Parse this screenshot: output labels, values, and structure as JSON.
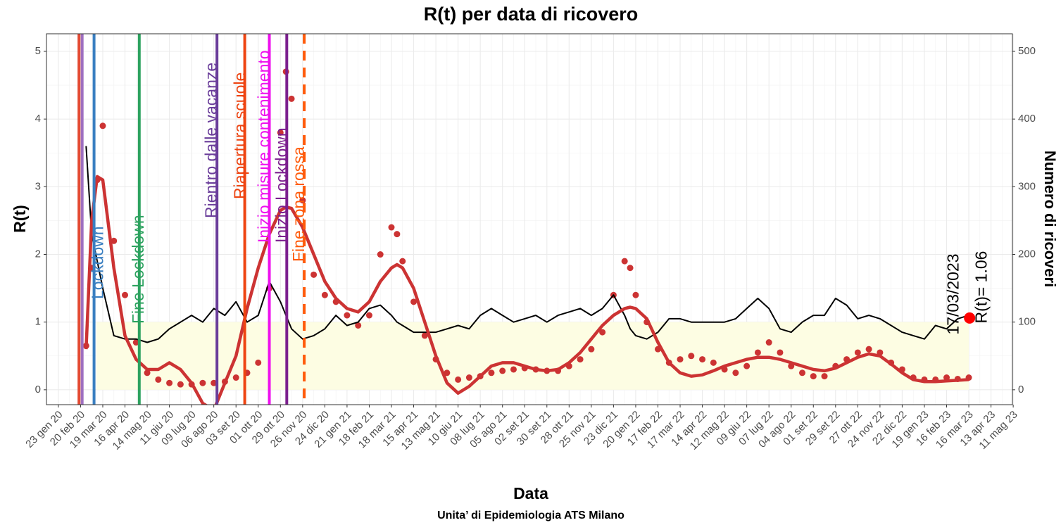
{
  "chart_data": {
    "type": "line",
    "title": "R(t) per data di ricovero",
    "xlabel": "Data",
    "ylabel": "R(t)",
    "y2label": "Numero di ricoveri",
    "caption": "Unita’ di Epidemiologia ATS Milano",
    "grid": true,
    "xlim": [
      "2020-01-08",
      "2023-05-10"
    ],
    "ylim": [
      -0.22,
      5.26
    ],
    "y2lim": [
      -22,
      526
    ],
    "yticks": [
      0,
      1,
      2,
      3,
      4,
      5
    ],
    "y2ticks": [
      0,
      100,
      200,
      300,
      400,
      500
    ],
    "xticks": [
      {
        "value": "2020-01-23",
        "label": "23 gen 20"
      },
      {
        "value": "2020-02-20",
        "label": "20 feb 20"
      },
      {
        "value": "2020-03-19",
        "label": "19 mar 20"
      },
      {
        "value": "2020-04-16",
        "label": "16 apr 20"
      },
      {
        "value": "2020-05-14",
        "label": "14 mag 20"
      },
      {
        "value": "2020-06-11",
        "label": "11 giu 20"
      },
      {
        "value": "2020-07-09",
        "label": "09 lug 20"
      },
      {
        "value": "2020-08-06",
        "label": "06 ago 20"
      },
      {
        "value": "2020-09-03",
        "label": "03 set 20"
      },
      {
        "value": "2020-10-01",
        "label": "01 ott 20"
      },
      {
        "value": "2020-10-29",
        "label": "29 ott 20"
      },
      {
        "value": "2020-11-26",
        "label": "26 nov 20"
      },
      {
        "value": "2020-12-24",
        "label": "24 dic 20"
      },
      {
        "value": "2021-01-21",
        "label": "21 gen 21"
      },
      {
        "value": "2021-02-18",
        "label": "18 feb 21"
      },
      {
        "value": "2021-03-18",
        "label": "18 mar 21"
      },
      {
        "value": "2021-04-15",
        "label": "15 apr 21"
      },
      {
        "value": "2021-05-13",
        "label": "13 mag 21"
      },
      {
        "value": "2021-06-10",
        "label": "10 giu 21"
      },
      {
        "value": "2021-07-08",
        "label": "08 lug 21"
      },
      {
        "value": "2021-08-05",
        "label": "05 ago 21"
      },
      {
        "value": "2021-09-02",
        "label": "02 set 21"
      },
      {
        "value": "2021-09-30",
        "label": "30 set 21"
      },
      {
        "value": "2021-10-28",
        "label": "28 ott 21"
      },
      {
        "value": "2021-11-25",
        "label": "25 nov 21"
      },
      {
        "value": "2021-12-23",
        "label": "23 dic 21"
      },
      {
        "value": "2022-01-20",
        "label": "20 gen 22"
      },
      {
        "value": "2022-02-17",
        "label": "17 feb 22"
      },
      {
        "value": "2022-03-17",
        "label": "17 mar 22"
      },
      {
        "value": "2022-04-14",
        "label": "14 apr 22"
      },
      {
        "value": "2022-05-12",
        "label": "12 mag 22"
      },
      {
        "value": "2022-06-09",
        "label": "09 giu 22"
      },
      {
        "value": "2022-07-07",
        "label": "07 lug 22"
      },
      {
        "value": "2022-08-04",
        "label": "04 ago 22"
      },
      {
        "value": "2022-09-01",
        "label": "01 set 22"
      },
      {
        "value": "2022-09-29",
        "label": "29 set 22"
      },
      {
        "value": "2022-10-27",
        "label": "27 ott 22"
      },
      {
        "value": "2022-11-24",
        "label": "24 nov 22"
      },
      {
        "value": "2022-12-22",
        "label": "22 dic 22"
      },
      {
        "value": "2023-01-19",
        "label": "19 gen 23"
      },
      {
        "value": "2023-02-16",
        "label": "16 feb 23"
      },
      {
        "value": "2023-03-16",
        "label": "16 mar 23"
      },
      {
        "value": "2023-04-13",
        "label": "13 apr 23"
      },
      {
        "value": "2023-05-11",
        "label": "11 mag 23"
      }
    ],
    "x": [
      "2020-02-27",
      "2020-03-05",
      "2020-03-12",
      "2020-03-19",
      "2020-04-02",
      "2020-04-16",
      "2020-04-30",
      "2020-05-14",
      "2020-05-28",
      "2020-06-11",
      "2020-06-25",
      "2020-07-09",
      "2020-07-23",
      "2020-08-06",
      "2020-08-20",
      "2020-09-03",
      "2020-09-17",
      "2020-10-01",
      "2020-10-15",
      "2020-10-29",
      "2020-11-05",
      "2020-11-12",
      "2020-11-26",
      "2020-12-10",
      "2020-12-24",
      "2021-01-07",
      "2021-01-21",
      "2021-02-04",
      "2021-02-18",
      "2021-03-04",
      "2021-03-18",
      "2021-03-25",
      "2021-04-01",
      "2021-04-15",
      "2021-04-29",
      "2021-05-13",
      "2021-05-27",
      "2021-06-10",
      "2021-06-24",
      "2021-07-08",
      "2021-07-22",
      "2021-08-05",
      "2021-08-19",
      "2021-09-02",
      "2021-09-16",
      "2021-09-30",
      "2021-10-14",
      "2021-10-28",
      "2021-11-11",
      "2021-11-25",
      "2021-12-09",
      "2021-12-23",
      "2022-01-06",
      "2022-01-13",
      "2022-01-20",
      "2022-02-03",
      "2022-02-17",
      "2022-03-03",
      "2022-03-17",
      "2022-03-31",
      "2022-04-14",
      "2022-04-28",
      "2022-05-12",
      "2022-05-26",
      "2022-06-09",
      "2022-06-23",
      "2022-07-07",
      "2022-07-21",
      "2022-08-04",
      "2022-08-18",
      "2022-09-01",
      "2022-09-15",
      "2022-09-29",
      "2022-10-13",
      "2022-10-27",
      "2022-11-10",
      "2022-11-24",
      "2022-12-08",
      "2022-12-22",
      "2023-01-05",
      "2023-01-19",
      "2023-02-02",
      "2023-02-16",
      "2023-03-02",
      "2023-03-16"
    ],
    "series": [
      {
        "style": "line",
        "color": "#000000",
        "axis": "y",
        "values": [
          3.6,
          2.3,
          1.9,
          1.5,
          0.8,
          0.75,
          0.75,
          0.7,
          0.75,
          0.9,
          1.0,
          1.1,
          1.0,
          1.2,
          1.1,
          1.3,
          1.0,
          1.1,
          1.6,
          1.3,
          1.1,
          0.9,
          0.75,
          0.8,
          0.9,
          1.1,
          0.95,
          1.0,
          1.2,
          1.25,
          1.1,
          1.0,
          0.95,
          0.85,
          0.85,
          0.85,
          0.9,
          0.95,
          0.9,
          1.1,
          1.2,
          1.1,
          1.0,
          1.05,
          1.1,
          1.0,
          1.1,
          1.15,
          1.2,
          1.1,
          1.2,
          1.4,
          1.1,
          0.9,
          0.8,
          0.75,
          0.85,
          1.05,
          1.05,
          1.0,
          1.0,
          1.0,
          1.0,
          1.05,
          1.2,
          1.35,
          1.2,
          0.9,
          0.85,
          1.0,
          1.1,
          1.1,
          1.35,
          1.25,
          1.05,
          1.1,
          1.05,
          0.95,
          0.85,
          0.8,
          0.75,
          0.95,
          0.9,
          1.05,
          1.1
        ]
      },
      {
        "style": "points",
        "color": "#cc3333",
        "axis": "y2",
        "values": [
          65,
          180,
          310,
          390,
          220,
          140,
          70,
          25,
          15,
          10,
          8,
          8,
          10,
          10,
          12,
          18,
          25,
          40,
          150,
          380,
          470,
          430,
          280,
          170,
          140,
          130,
          110,
          95,
          110,
          200,
          240,
          230,
          190,
          130,
          80,
          45,
          25,
          15,
          18,
          20,
          25,
          28,
          30,
          32,
          30,
          28,
          28,
          35,
          45,
          60,
          85,
          140,
          190,
          180,
          140,
          100,
          60,
          40,
          45,
          50,
          45,
          40,
          30,
          25,
          35,
          55,
          70,
          55,
          35,
          25,
          20,
          20,
          35,
          45,
          55,
          60,
          55,
          40,
          30,
          18,
          15,
          15,
          18,
          16,
          18
        ]
      },
      {
        "style": "line",
        "color": "#cc3333",
        "axis": "y2",
        "values": [
          60,
          250,
          315,
          310,
          180,
          80,
          45,
          30,
          30,
          40,
          30,
          10,
          -20,
          -30,
          10,
          50,
          120,
          180,
          230,
          265,
          270,
          268,
          240,
          200,
          160,
          135,
          120,
          115,
          130,
          160,
          180,
          185,
          180,
          150,
          100,
          50,
          10,
          -5,
          5,
          20,
          35,
          40,
          40,
          35,
          30,
          28,
          30,
          40,
          55,
          75,
          95,
          110,
          120,
          122,
          120,
          105,
          70,
          40,
          25,
          20,
          22,
          28,
          35,
          40,
          45,
          48,
          48,
          45,
          40,
          35,
          30,
          28,
          32,
          40,
          48,
          53,
          50,
          38,
          25,
          15,
          12,
          12,
          13,
          14,
          15
        ]
      }
    ],
    "band": {
      "x": [
        "2020-03-11",
        "2023-03-16"
      ],
      "ylim": [
        0,
        1
      ],
      "color": "#fdfde3"
    },
    "events": [
      {
        "date": "2020-02-18",
        "color": "#e34a33"
      },
      {
        "date": "2020-02-22",
        "color": "#9e6fc0"
      },
      {
        "date": "2020-03-08",
        "color": "#3a7fc1",
        "label": "Lockdown"
      },
      {
        "date": "2020-05-04",
        "color": "#2ca25f",
        "label": "Fine Lockdown"
      },
      {
        "date": "2020-08-10",
        "color": "#6a3d9a",
        "label": "Rientro dalle vacanze"
      },
      {
        "date": "2020-09-14",
        "color": "#ee4411",
        "label": "Riapertura scuole"
      },
      {
        "date": "2020-10-15",
        "color": "#ee11ee",
        "label": "Inizio misure contenimento"
      },
      {
        "date": "2020-11-06",
        "color": "#7b1f8e",
        "label": "Inizio Lockdown"
      },
      {
        "date": "2020-11-28",
        "color": "#ff5a0a",
        "label": "Fine zona rossa",
        "dashed": true
      }
    ],
    "last": {
      "date": "2023-03-17",
      "date_label": "17/03/2023",
      "value": 1.06,
      "label": "R(t)= 1.06",
      "color": "#ff0000"
    }
  }
}
